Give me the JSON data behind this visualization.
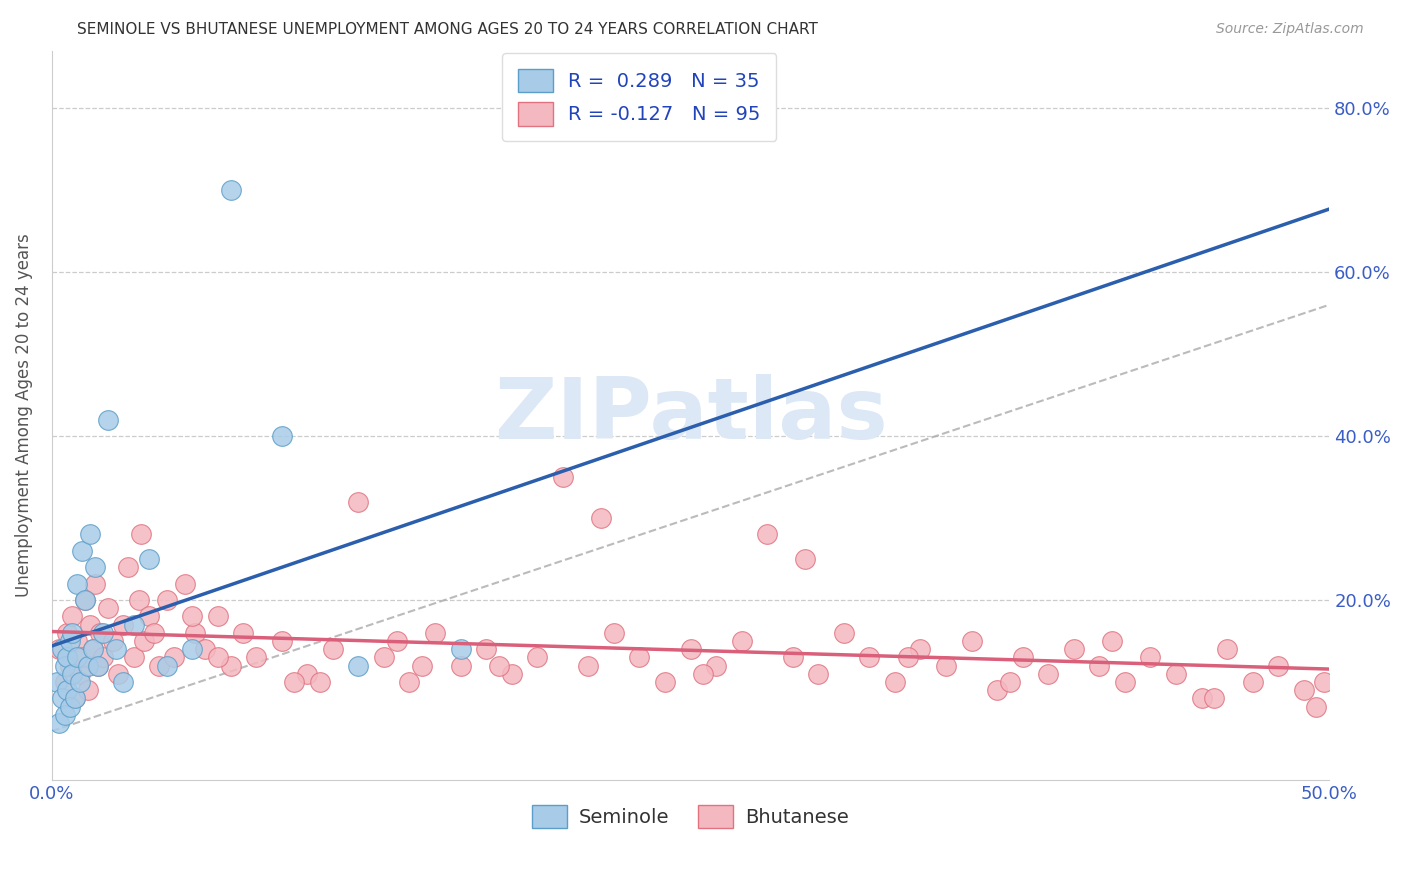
{
  "title": "SEMINOLE VS BHUTANESE UNEMPLOYMENT AMONG AGES 20 TO 24 YEARS CORRELATION CHART",
  "source": "Source: ZipAtlas.com",
  "ylabel": "Unemployment Among Ages 20 to 24 years",
  "xlim": [
    0.0,
    0.5
  ],
  "ylim": [
    -0.02,
    0.87
  ],
  "x_tick_positions": [
    0.0,
    0.5
  ],
  "x_tick_labels": [
    "0.0%",
    "50.0%"
  ],
  "y_tick_positions": [
    0.0,
    0.2,
    0.4,
    0.6,
    0.8
  ],
  "y_tick_labels_left": [
    "",
    "",
    "",
    "",
    ""
  ],
  "y_tick_labels_right": [
    "",
    "20.0%",
    "40.0%",
    "60.0%",
    "80.0%"
  ],
  "seminole_R": 0.289,
  "seminole_N": 35,
  "bhutanese_R": -0.127,
  "bhutanese_N": 95,
  "seminole_color": "#a8cce8",
  "seminole_edge_color": "#5b9ec9",
  "bhutanese_color": "#f4b8c1",
  "bhutanese_edge_color": "#e0737f",
  "seminole_line_color": "#2b5fad",
  "bhutanese_line_color": "#d95f7a",
  "trendline_gray": "#aaaaaa",
  "watermark_color": "#dce8f5",
  "watermark_text": "ZIPatlas",
  "background_color": "#ffffff",
  "seminole_x": [
    0.002,
    0.003,
    0.004,
    0.004,
    0.005,
    0.005,
    0.006,
    0.006,
    0.007,
    0.007,
    0.008,
    0.008,
    0.009,
    0.01,
    0.01,
    0.011,
    0.012,
    0.013,
    0.014,
    0.015,
    0.016,
    0.017,
    0.018,
    0.02,
    0.022,
    0.025,
    0.028,
    0.032,
    0.038,
    0.045,
    0.055,
    0.07,
    0.09,
    0.12,
    0.16
  ],
  "seminole_y": [
    0.1,
    0.05,
    0.08,
    0.14,
    0.12,
    0.06,
    0.13,
    0.09,
    0.15,
    0.07,
    0.11,
    0.16,
    0.08,
    0.13,
    0.22,
    0.1,
    0.26,
    0.2,
    0.12,
    0.28,
    0.14,
    0.24,
    0.12,
    0.16,
    0.42,
    0.14,
    0.1,
    0.17,
    0.25,
    0.12,
    0.14,
    0.7,
    0.4,
    0.12,
    0.14
  ],
  "bhutanese_x": [
    0.003,
    0.005,
    0.006,
    0.007,
    0.008,
    0.009,
    0.01,
    0.011,
    0.012,
    0.013,
    0.014,
    0.015,
    0.016,
    0.017,
    0.018,
    0.019,
    0.02,
    0.022,
    0.024,
    0.026,
    0.028,
    0.03,
    0.032,
    0.034,
    0.036,
    0.038,
    0.04,
    0.042,
    0.045,
    0.048,
    0.052,
    0.056,
    0.06,
    0.065,
    0.07,
    0.075,
    0.08,
    0.09,
    0.1,
    0.11,
    0.12,
    0.13,
    0.14,
    0.15,
    0.16,
    0.17,
    0.18,
    0.19,
    0.2,
    0.21,
    0.22,
    0.23,
    0.24,
    0.25,
    0.26,
    0.27,
    0.28,
    0.29,
    0.3,
    0.31,
    0.32,
    0.33,
    0.34,
    0.35,
    0.36,
    0.37,
    0.38,
    0.39,
    0.4,
    0.41,
    0.42,
    0.43,
    0.44,
    0.45,
    0.46,
    0.47,
    0.48,
    0.49,
    0.495,
    0.498,
    0.035,
    0.055,
    0.095,
    0.135,
    0.175,
    0.215,
    0.255,
    0.295,
    0.335,
    0.375,
    0.415,
    0.455,
    0.065,
    0.105,
    0.145
  ],
  "bhutanese_y": [
    0.14,
    0.1,
    0.16,
    0.12,
    0.18,
    0.08,
    0.15,
    0.11,
    0.13,
    0.2,
    0.09,
    0.17,
    0.14,
    0.22,
    0.12,
    0.16,
    0.13,
    0.19,
    0.15,
    0.11,
    0.17,
    0.24,
    0.13,
    0.2,
    0.15,
    0.18,
    0.16,
    0.12,
    0.2,
    0.13,
    0.22,
    0.16,
    0.14,
    0.18,
    0.12,
    0.16,
    0.13,
    0.15,
    0.11,
    0.14,
    0.32,
    0.13,
    0.1,
    0.16,
    0.12,
    0.14,
    0.11,
    0.13,
    0.35,
    0.12,
    0.16,
    0.13,
    0.1,
    0.14,
    0.12,
    0.15,
    0.28,
    0.13,
    0.11,
    0.16,
    0.13,
    0.1,
    0.14,
    0.12,
    0.15,
    0.09,
    0.13,
    0.11,
    0.14,
    0.12,
    0.1,
    0.13,
    0.11,
    0.08,
    0.14,
    0.1,
    0.12,
    0.09,
    0.07,
    0.1,
    0.28,
    0.18,
    0.1,
    0.15,
    0.12,
    0.3,
    0.11,
    0.25,
    0.13,
    0.1,
    0.15,
    0.08,
    0.13,
    0.1,
    0.12
  ]
}
